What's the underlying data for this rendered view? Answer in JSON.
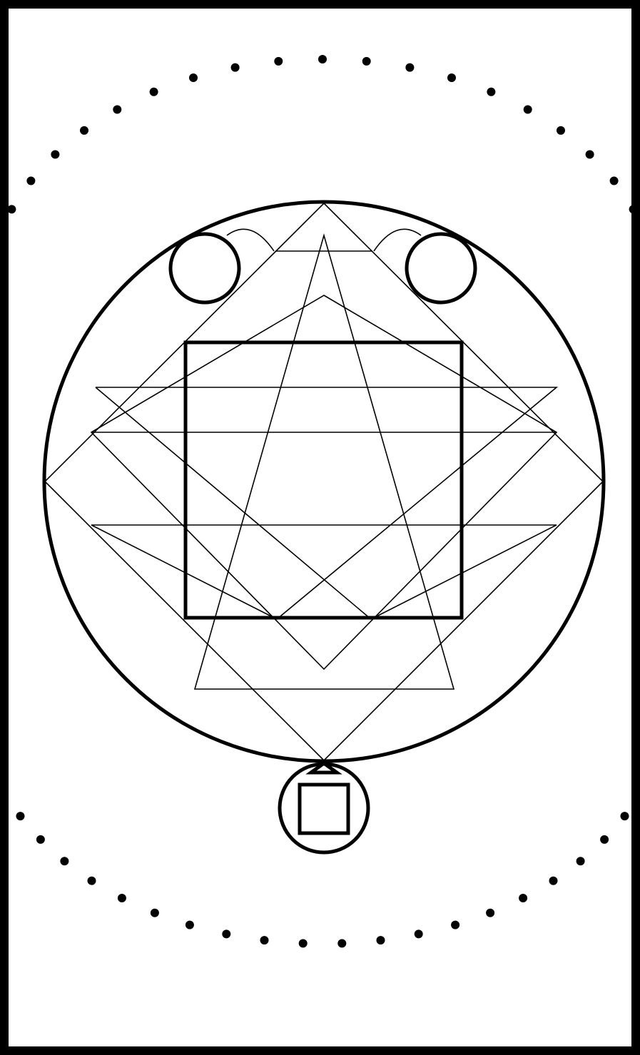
{
  "card": {
    "background_color": "#ffffff",
    "border_color": "#000000",
    "ink_color": "#000000"
  },
  "diagram": {
    "kind": "geometric sigil",
    "outer_dot_arcs": {
      "top_dot_count": 19,
      "bottom_dot_count": 20
    },
    "elements": [
      "dotted-arc-top",
      "dotted-arc-bottom",
      "outer-circle",
      "top-diamond",
      "upward-star-triangle",
      "inner-diamond",
      "horizontal-zigzag-band",
      "central-square",
      "small-circle-left",
      "small-circle-right",
      "bottom-circle",
      "bottom-square",
      "bottom-triangle"
    ]
  }
}
